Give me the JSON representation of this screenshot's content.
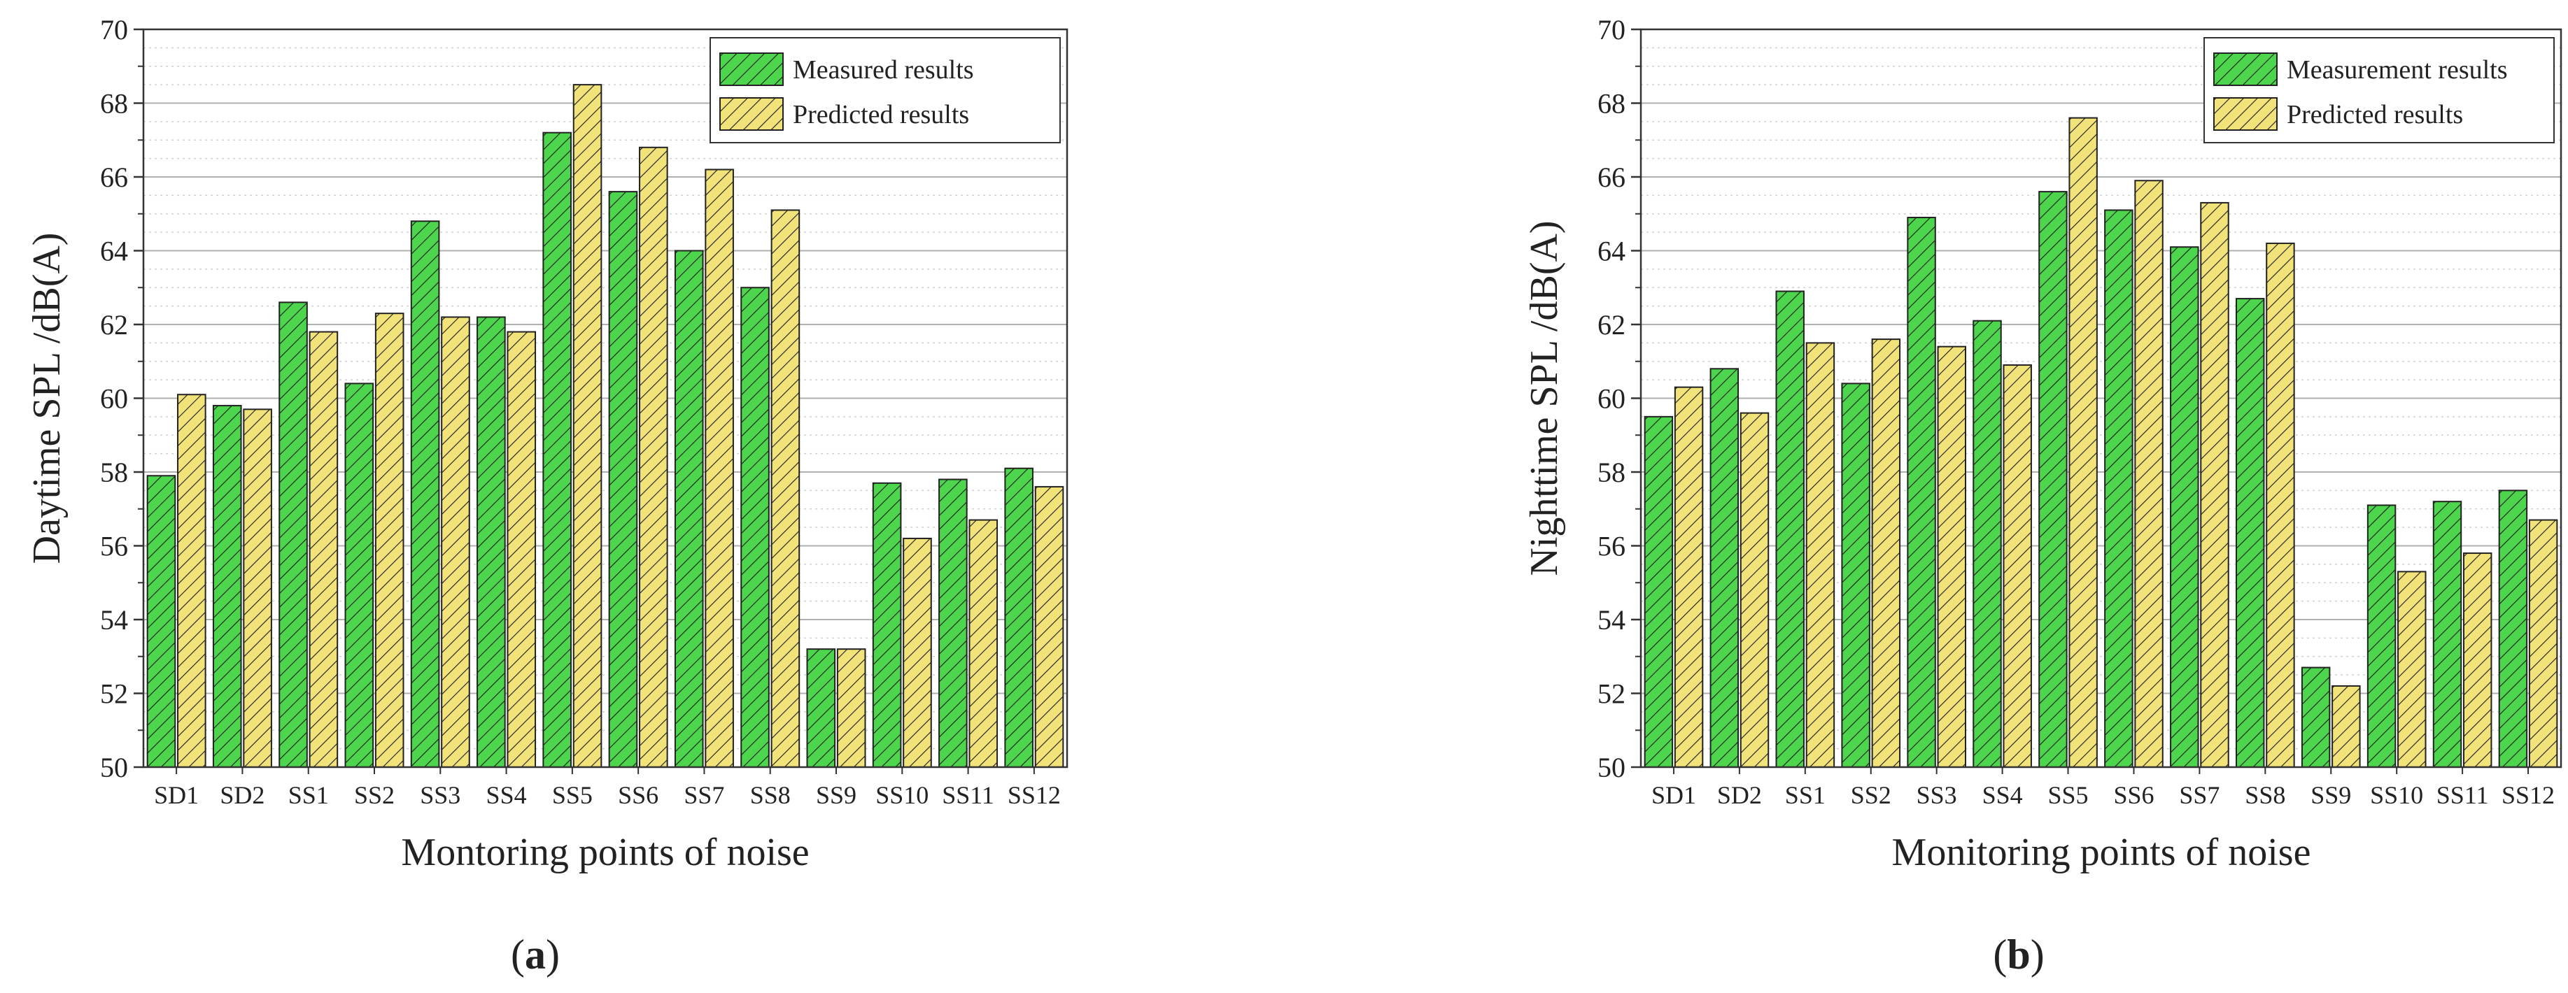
{
  "colors": {
    "measured": "#4dd64d",
    "predicted": "#f2e27a",
    "hatch": "#1a1a1a",
    "grid_major": "#b0b0b0",
    "grid_minor": "#d0d0d0"
  },
  "chart_data": [
    {
      "type": "bar",
      "panel_prefix": "(",
      "panel_letter": "a",
      "panel_suffix": ")",
      "xlabel": "Montoring points of noise",
      "ylabel": "Daytime SPL /dB(A)",
      "ylim": [
        50,
        70
      ],
      "yticks": [
        50,
        52,
        54,
        56,
        58,
        60,
        62,
        64,
        66,
        68,
        70
      ],
      "grid": true,
      "legend_position": "top-right",
      "categories": [
        "SD1",
        "SD2",
        "SS1",
        "SS2",
        "SS3",
        "SS4",
        "SS5",
        "SS6",
        "SS7",
        "SS8",
        "SS9",
        "SS10",
        "SS11",
        "SS12"
      ],
      "series": [
        {
          "name": "Measured results",
          "color_key": "measured",
          "values": [
            57.9,
            59.8,
            62.6,
            60.4,
            64.8,
            62.2,
            67.2,
            65.6,
            64.0,
            63.0,
            53.2,
            57.7,
            57.8,
            58.1
          ]
        },
        {
          "name": "Predicted results",
          "color_key": "predicted",
          "values": [
            60.1,
            59.7,
            61.8,
            62.3,
            62.2,
            61.8,
            68.5,
            66.8,
            66.2,
            65.1,
            53.2,
            56.2,
            56.7,
            57.6
          ]
        }
      ]
    },
    {
      "type": "bar",
      "panel_prefix": "(",
      "panel_letter": "b",
      "panel_suffix": ")",
      "xlabel": "Monitoring points of noise",
      "ylabel": "Nighttime SPL /dB(A)",
      "ylim": [
        50,
        70
      ],
      "yticks": [
        50,
        52,
        54,
        56,
        58,
        60,
        62,
        64,
        66,
        68,
        70
      ],
      "grid": true,
      "legend_position": "top-right",
      "categories": [
        "SD1",
        "SD2",
        "SS1",
        "SS2",
        "SS3",
        "SS4",
        "SS5",
        "SS6",
        "SS7",
        "SS8",
        "SS9",
        "SS10",
        "SS11",
        "SS12"
      ],
      "series": [
        {
          "name": "Measurement results",
          "color_key": "measured",
          "values": [
            59.5,
            60.8,
            62.9,
            60.4,
            64.9,
            62.1,
            65.6,
            65.1,
            64.1,
            62.7,
            52.7,
            57.1,
            57.2,
            57.5
          ]
        },
        {
          "name": "Predicted results",
          "color_key": "predicted",
          "values": [
            60.3,
            59.6,
            61.5,
            61.6,
            61.4,
            60.9,
            67.6,
            65.9,
            65.3,
            64.2,
            52.2,
            55.3,
            55.8,
            56.7
          ]
        }
      ]
    }
  ]
}
